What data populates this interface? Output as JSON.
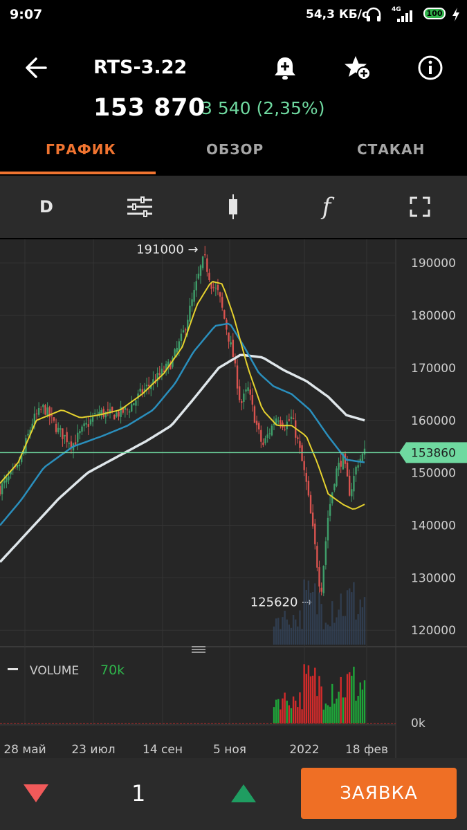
{
  "status_bar": {
    "time": "9:07",
    "network_speed": "54,3 КБ/с",
    "network_type": "4G",
    "battery": "100"
  },
  "header": {
    "title": "RTS-3.22",
    "price": "153 870",
    "change": "3 540 (2,35%)",
    "change_color": "#6fd9a0"
  },
  "tabs": [
    {
      "label": "ГРАФИК",
      "active": true
    },
    {
      "label": "ОБЗОР",
      "active": false
    },
    {
      "label": "СТАКАН",
      "active": false
    }
  ],
  "toolbar": {
    "period_label": "D",
    "function_label": "f",
    "icons": [
      "sliders-icon",
      "candlestick-icon",
      "function-icon",
      "fullscreen-icon"
    ]
  },
  "chart": {
    "max_label": "191000 →",
    "min_label": "125620 →",
    "last_price_label": "153860",
    "volume_label": "VOLUME",
    "volume_value": "70k",
    "accent": "#f07430",
    "up_color": "#3f9e6a",
    "down_color": "#d9534f"
  },
  "bottom": {
    "quantity": "1",
    "order_button": "ЗАЯВКА"
  },
  "chart_data": {
    "type": "candlestick",
    "y_ticks": [
      "190000",
      "180000",
      "170000",
      "160000",
      "150000",
      "140000",
      "130000",
      "120000"
    ],
    "volume_tick": "0k",
    "x_ticks": [
      "28 май",
      "23 июл",
      "14 сен",
      "5 ноя",
      "2022",
      "18 фев"
    ],
    "ylim": [
      117000,
      194500
    ],
    "last_price": 153860,
    "close_path": [
      [
        0,
        147000
      ],
      [
        0.05,
        151000
      ],
      [
        0.09,
        160000
      ],
      [
        0.12,
        162500
      ],
      [
        0.16,
        158000
      ],
      [
        0.2,
        155500
      ],
      [
        0.23,
        158500
      ],
      [
        0.27,
        161500
      ],
      [
        0.31,
        161000
      ],
      [
        0.35,
        162000
      ],
      [
        0.39,
        165500
      ],
      [
        0.43,
        168000
      ],
      [
        0.47,
        171000
      ],
      [
        0.5,
        176000
      ],
      [
        0.53,
        183500
      ],
      [
        0.55,
        189000
      ],
      [
        0.56,
        191000
      ],
      [
        0.58,
        186000
      ],
      [
        0.6,
        184000
      ],
      [
        0.62,
        178000
      ],
      [
        0.64,
        172000
      ],
      [
        0.66,
        163000
      ],
      [
        0.68,
        166000
      ],
      [
        0.7,
        160000
      ],
      [
        0.72,
        155000
      ],
      [
        0.74,
        158000
      ],
      [
        0.76,
        161000
      ],
      [
        0.78,
        159000
      ],
      [
        0.8,
        160500
      ],
      [
        0.82,
        155000
      ],
      [
        0.84,
        148000
      ],
      [
        0.86,
        138000
      ],
      [
        0.88,
        127000
      ],
      [
        0.9,
        142000
      ],
      [
        0.92,
        150000
      ],
      [
        0.94,
        153000
      ],
      [
        0.96,
        146000
      ],
      [
        0.98,
        152000
      ],
      [
        1,
        153860
      ]
    ],
    "ma_fast": [
      [
        0,
        148000
      ],
      [
        0.05,
        152000
      ],
      [
        0.1,
        160000
      ],
      [
        0.17,
        162000
      ],
      [
        0.22,
        160500
      ],
      [
        0.27,
        161000
      ],
      [
        0.33,
        162000
      ],
      [
        0.39,
        165000
      ],
      [
        0.45,
        169000
      ],
      [
        0.5,
        174000
      ],
      [
        0.54,
        182000
      ],
      [
        0.58,
        186500
      ],
      [
        0.61,
        186000
      ],
      [
        0.64,
        180000
      ],
      [
        0.68,
        170000
      ],
      [
        0.72,
        162000
      ],
      [
        0.76,
        159000
      ],
      [
        0.8,
        159000
      ],
      [
        0.84,
        157000
      ],
      [
        0.87,
        152000
      ],
      [
        0.9,
        146000
      ],
      [
        0.94,
        144000
      ],
      [
        0.97,
        143000
      ],
      [
        1,
        144000
      ]
    ],
    "ma_mid": [
      [
        0,
        140000
      ],
      [
        0.06,
        145000
      ],
      [
        0.12,
        151000
      ],
      [
        0.2,
        155000
      ],
      [
        0.28,
        157000
      ],
      [
        0.35,
        159000
      ],
      [
        0.42,
        162000
      ],
      [
        0.48,
        167000
      ],
      [
        0.53,
        173000
      ],
      [
        0.59,
        178000
      ],
      [
        0.63,
        178500
      ],
      [
        0.67,
        174000
      ],
      [
        0.71,
        169000
      ],
      [
        0.75,
        166500
      ],
      [
        0.8,
        165000
      ],
      [
        0.85,
        162000
      ],
      [
        0.9,
        157000
      ],
      [
        0.95,
        152500
      ],
      [
        1,
        152000
      ]
    ],
    "ma_slow": [
      [
        0,
        133000
      ],
      [
        0.08,
        139000
      ],
      [
        0.16,
        145000
      ],
      [
        0.24,
        150000
      ],
      [
        0.32,
        153000
      ],
      [
        0.4,
        156000
      ],
      [
        0.47,
        159000
      ],
      [
        0.53,
        164000
      ],
      [
        0.6,
        170000
      ],
      [
        0.66,
        172500
      ],
      [
        0.72,
        172000
      ],
      [
        0.78,
        169500
      ],
      [
        0.84,
        167500
      ],
      [
        0.9,
        164500
      ],
      [
        0.95,
        161000
      ],
      [
        1,
        160000
      ]
    ]
  }
}
